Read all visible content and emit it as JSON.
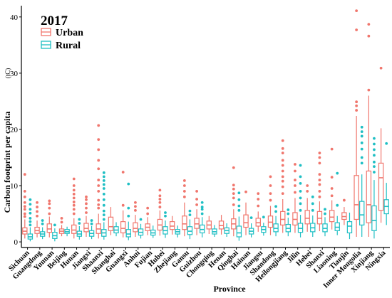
{
  "chart_data": {
    "type": "box",
    "title": "2017",
    "xlabel": "Province",
    "ylabel": "Carbon footprint per capita",
    "ylabel_unit": "(tC)",
    "ylim": [
      -1,
      42
    ],
    "yticks": [
      0,
      10,
      20,
      30,
      40
    ],
    "legend_position": "top-left",
    "series": [
      {
        "name": "Urban",
        "color": "#f0766d"
      },
      {
        "name": "Rural",
        "color": "#1fbfc4"
      }
    ],
    "categories": [
      "Sichuan",
      "Guangdong",
      "Yunnan",
      "Beijing",
      "Hunan",
      "Jiangxi",
      "Shaanxi",
      "Shanghai",
      "Guangxi",
      "Anhui",
      "Fujian",
      "Hubei",
      "Zhejiang",
      "Gansu",
      "Guizhou",
      "Chongqing",
      "Henan",
      "Qinghai",
      "Hainan",
      "Jiangsu",
      "Shandong",
      "Heilongjiang",
      "Jilin",
      "Hebei",
      "Shanxi",
      "Liaoning",
      "Tianjin",
      "Inner Mongolia",
      "Xinjiang",
      "Ningxia"
    ],
    "boxes": [
      {
        "urban": {
          "q1": 1.4,
          "median": 1.9,
          "q3": 2.5,
          "whisker_low": 0.6,
          "whisker_high": 4.0,
          "outliers": [
            4.5,
            5.0,
            5.8,
            6.3,
            7.0,
            8.0,
            9.0,
            12.0
          ]
        },
        "rural": {
          "q1": 0.5,
          "median": 0.9,
          "q3": 1.4,
          "whisker_low": 0.1,
          "whisker_high": 2.6,
          "outliers": [
            3.0,
            3.6,
            4.2,
            5.1,
            5.8,
            6.7,
            7.5
          ]
        }
      },
      {
        "urban": {
          "q1": 1.5,
          "median": 2.0,
          "q3": 2.6,
          "whisker_low": 0.8,
          "whisker_high": 3.8,
          "outliers": [
            4.6,
            5.4,
            6.2,
            7.0
          ]
        },
        "rural": {
          "q1": 1.0,
          "median": 1.4,
          "q3": 1.8,
          "whisker_low": 0.5,
          "whisker_high": 2.6,
          "outliers": [
            3.2,
            3.8
          ]
        }
      },
      {
        "urban": {
          "q1": 1.7,
          "median": 2.3,
          "q3": 3.2,
          "whisker_low": 0.8,
          "whisker_high": 4.5,
          "outliers": [
            5.0,
            6.0,
            6.8,
            7.3
          ]
        },
        "rural": {
          "q1": 0.6,
          "median": 1.1,
          "q3": 1.7,
          "whisker_low": 0.1,
          "whisker_high": 2.4,
          "outliers": [
            3.0
          ]
        }
      },
      {
        "urban": {
          "q1": 1.5,
          "median": 1.9,
          "q3": 2.3,
          "whisker_low": 1.0,
          "whisker_high": 3.0,
          "outliers": [
            3.5,
            4.2
          ]
        },
        "rural": {
          "q1": 1.5,
          "median": 1.8,
          "q3": 2.2,
          "whisker_low": 1.0,
          "whisker_high": 2.7,
          "outliers": []
        }
      },
      {
        "urban": {
          "q1": 1.5,
          "median": 2.1,
          "q3": 3.0,
          "whisker_low": 0.6,
          "whisker_high": 4.2,
          "outliers": [
            5.0,
            5.8,
            6.5,
            7.1,
            7.8,
            8.5,
            9.2,
            10.0,
            11.2
          ]
        },
        "rural": {
          "q1": 1.0,
          "median": 1.4,
          "q3": 1.9,
          "whisker_low": 0.4,
          "whisker_high": 2.8,
          "outliers": [
            3.3,
            4.0
          ]
        }
      },
      {
        "urban": {
          "q1": 1.8,
          "median": 2.4,
          "q3": 3.3,
          "whisker_low": 0.9,
          "whisker_high": 4.6,
          "outliers": [
            5.2,
            6.0,
            6.8,
            7.5,
            8.0
          ]
        },
        "rural": {
          "q1": 1.0,
          "median": 1.5,
          "q3": 2.0,
          "whisker_low": 0.5,
          "whisker_high": 2.8,
          "outliers": [
            3.2,
            3.8
          ]
        }
      },
      {
        "urban": {
          "q1": 1.5,
          "median": 2.3,
          "q3": 3.2,
          "whisker_low": 0.6,
          "whisker_high": 5.0,
          "outliers": [
            6.0,
            6.6,
            7.4,
            9.0,
            10.0,
            11.0,
            13.0,
            14.5,
            16.4,
            18.2,
            20.7
          ]
        },
        "rural": {
          "q1": 1.0,
          "median": 1.6,
          "q3": 2.2,
          "whisker_low": 0.4,
          "whisker_high": 3.5,
          "outliers": [
            4.0,
            4.8,
            5.5,
            6.5,
            7.5,
            8.5,
            9.5,
            10.2,
            10.9,
            11.6,
            12.3
          ]
        }
      },
      {
        "urban": {
          "q1": 2.0,
          "median": 2.7,
          "q3": 4.4,
          "whisker_low": 1.2,
          "whisker_high": 6.2,
          "outliers": []
        },
        "rural": {
          "q1": 1.6,
          "median": 2.1,
          "q3": 2.7,
          "whisker_low": 1.0,
          "whisker_high": 3.5,
          "outliers": []
        }
      },
      {
        "urban": {
          "q1": 1.6,
          "median": 2.4,
          "q3": 3.6,
          "whisker_low": 0.8,
          "whisker_high": 5.6,
          "outliers": [
            6.5,
            12.4
          ]
        },
        "rural": {
          "q1": 0.9,
          "median": 1.4,
          "q3": 2.2,
          "whisker_low": 0.3,
          "whisker_high": 3.6,
          "outliers": [
            4.6,
            6.0,
            10.3
          ]
        }
      },
      {
        "urban": {
          "q1": 1.8,
          "median": 2.4,
          "q3": 3.4,
          "whisker_low": 0.9,
          "whisker_high": 4.8,
          "outliers": [
            5.6,
            6.3,
            7.0
          ]
        },
        "rural": {
          "q1": 1.2,
          "median": 1.7,
          "q3": 2.3,
          "whisker_low": 0.6,
          "whisker_high": 3.2,
          "outliers": [
            4.0
          ]
        }
      },
      {
        "urban": {
          "q1": 2.0,
          "median": 2.6,
          "q3": 3.2,
          "whisker_low": 1.2,
          "whisker_high": 4.4,
          "outliers": [
            5.0,
            6.0
          ]
        },
        "rural": {
          "q1": 1.2,
          "median": 1.6,
          "q3": 2.1,
          "whisker_low": 0.7,
          "whisker_high": 2.9,
          "outliers": []
        }
      },
      {
        "urban": {
          "q1": 2.1,
          "median": 3.0,
          "q3": 4.0,
          "whisker_low": 1.1,
          "whisker_high": 5.6,
          "outliers": [
            6.2,
            7.0,
            7.6,
            8.2,
            9.2
          ]
        },
        "rural": {
          "q1": 1.4,
          "median": 2.0,
          "q3": 2.7,
          "whisker_low": 0.7,
          "whisker_high": 3.8,
          "outliers": [
            4.6,
            5.2
          ]
        }
      },
      {
        "urban": {
          "q1": 2.2,
          "median": 2.8,
          "q3": 3.6,
          "whisker_low": 1.3,
          "whisker_high": 4.6,
          "outliers": []
        },
        "rural": {
          "q1": 1.4,
          "median": 1.8,
          "q3": 2.2,
          "whisker_low": 0.8,
          "whisker_high": 2.9,
          "outliers": []
        }
      },
      {
        "urban": {
          "q1": 2.2,
          "median": 3.2,
          "q3": 4.6,
          "whisker_low": 1.0,
          "whisker_high": 7.0,
          "outliers": [
            8.0,
            9.0,
            10.0,
            10.9
          ]
        },
        "rural": {
          "q1": 1.3,
          "median": 1.9,
          "q3": 2.7,
          "whisker_low": 0.5,
          "whisker_high": 4.0,
          "outliers": [
            4.8,
            5.5
          ]
        }
      },
      {
        "urban": {
          "q1": 2.4,
          "median": 3.2,
          "q3": 4.2,
          "whisker_low": 1.2,
          "whisker_high": 5.8,
          "outliers": [
            6.6,
            7.6,
            9.0
          ]
        },
        "rural": {
          "q1": 1.6,
          "median": 2.2,
          "q3": 3.0,
          "whisker_low": 0.8,
          "whisker_high": 4.4,
          "outliers": [
            5.0,
            5.8,
            6.2,
            7.0
          ]
        }
      },
      {
        "urban": {
          "q1": 2.3,
          "median": 3.0,
          "q3": 3.7,
          "whisker_low": 1.4,
          "whisker_high": 4.6,
          "outliers": []
        },
        "rural": {
          "q1": 1.4,
          "median": 1.8,
          "q3": 2.3,
          "whisker_low": 0.9,
          "whisker_high": 3.0,
          "outliers": []
        }
      },
      {
        "urban": {
          "q1": 2.3,
          "median": 2.9,
          "q3": 3.7,
          "whisker_low": 1.3,
          "whisker_high": 4.8,
          "outliers": []
        },
        "rural": {
          "q1": 1.5,
          "median": 2.0,
          "q3": 2.5,
          "whisker_low": 0.9,
          "whisker_high": 3.3,
          "outliers": []
        }
      },
      {
        "urban": {
          "q1": 2.3,
          "median": 3.2,
          "q3": 4.1,
          "whisker_low": 1.0,
          "whisker_high": 5.8,
          "outliers": [
            6.6,
            7.8,
            8.6,
            9.4,
            10.1,
            13.2
          ]
        },
        "rural": {
          "q1": 0.9,
          "median": 1.6,
          "q3": 2.8,
          "whisker_low": 0.2,
          "whisker_high": 4.5,
          "outliers": [
            5.6,
            6.4,
            7.5,
            8.7
          ]
        }
      },
      {
        "urban": {
          "q1": 2.6,
          "median": 3.4,
          "q3": 4.8,
          "whisker_low": 1.2,
          "whisker_high": 7.0,
          "outliers": [
            8.9
          ]
        },
        "rural": {
          "q1": 1.4,
          "median": 1.9,
          "q3": 2.4,
          "whisker_low": 0.8,
          "whisker_high": 3.3,
          "outliers": [
            4.3
          ]
        }
      },
      {
        "urban": {
          "q1": 2.8,
          "median": 3.4,
          "q3": 4.2,
          "whisker_low": 1.8,
          "whisker_high": 5.4,
          "outliers": [
            6.4,
            7.6,
            8.6
          ]
        },
        "rural": {
          "q1": 1.7,
          "median": 2.2,
          "q3": 2.7,
          "whisker_low": 1.1,
          "whisker_high": 3.4,
          "outliers": [
            4.4
          ]
        }
      },
      {
        "urban": {
          "q1": 2.6,
          "median": 3.5,
          "q3": 4.6,
          "whisker_low": 1.2,
          "whisker_high": 6.4,
          "outliers": [
            7.4,
            8.6,
            10.0,
            11.6
          ]
        },
        "rural": {
          "q1": 1.8,
          "median": 2.4,
          "q3": 3.2,
          "whisker_low": 1.0,
          "whisker_high": 4.6,
          "outliers": [
            5.4,
            6.3
          ]
        }
      },
      {
        "urban": {
          "q1": 3.0,
          "median": 4.0,
          "q3": 5.4,
          "whisker_low": 1.6,
          "whisker_high": 7.6,
          "outliers": [
            8.6,
            9.8,
            10.8,
            11.6,
            12.6,
            13.6,
            14.5,
            15.8,
            16.6,
            18.0
          ]
        },
        "rural": {
          "q1": 1.8,
          "median": 2.4,
          "q3": 3.1,
          "whisker_low": 1.0,
          "whisker_high": 4.3,
          "outliers": [
            5.0,
            5.7
          ]
        }
      },
      {
        "urban": {
          "q1": 3.0,
          "median": 4.0,
          "q3": 5.2,
          "whisker_low": 1.6,
          "whisker_high": 7.8,
          "outliers": [
            8.8,
            10.0,
            11.0,
            12.6,
            13.8
          ]
        },
        "rural": {
          "q1": 1.7,
          "median": 2.4,
          "q3": 3.3,
          "whisker_low": 0.8,
          "whisker_high": 4.8,
          "outliers": [
            5.6,
            6.8,
            7.8,
            9.0,
            10.4,
            11.6,
            13.6
          ]
        }
      },
      {
        "urban": {
          "q1": 3.2,
          "median": 4.2,
          "q3": 5.6,
          "whisker_low": 1.8,
          "whisker_high": 7.8,
          "outliers": [
            9.0,
            10.0
          ]
        },
        "rural": {
          "q1": 1.8,
          "median": 2.5,
          "q3": 3.3,
          "whisker_low": 0.9,
          "whisker_high": 4.7,
          "outliers": [
            5.6,
            6.8,
            8.0
          ]
        }
      },
      {
        "urban": {
          "q1": 3.2,
          "median": 4.2,
          "q3": 5.4,
          "whisker_low": 1.9,
          "whisker_high": 7.2,
          "outliers": [
            8.0,
            9.0,
            10.2,
            11.0,
            12.0,
            14.0,
            15.0,
            15.8
          ]
        },
        "rural": {
          "q1": 1.8,
          "median": 2.4,
          "q3": 3.2,
          "whisker_low": 1.0,
          "whisker_high": 4.4,
          "outliers": [
            5.0,
            5.8
          ]
        }
      },
      {
        "urban": {
          "q1": 3.6,
          "median": 4.4,
          "q3": 5.6,
          "whisker_low": 2.2,
          "whisker_high": 7.4,
          "outliers": [
            8.2,
            9.5,
            11.5,
            16.5
          ]
        },
        "rural": {
          "q1": 2.0,
          "median": 2.6,
          "q3": 3.4,
          "whisker_low": 1.2,
          "whisker_high": 4.6,
          "outliers": [
            6.5,
            12.2
          ]
        }
      },
      {
        "urban": {
          "q1": 4.0,
          "median": 4.5,
          "q3": 5.2,
          "whisker_low": 3.0,
          "whisker_high": 6.2,
          "outliers": [
            7.4
          ]
        },
        "rural": {
          "q1": 1.6,
          "median": 2.8,
          "q3": 3.6,
          "whisker_low": 0.5,
          "whisker_high": 5.2,
          "outliers": []
        }
      },
      {
        "urban": {
          "q1": 4.0,
          "median": 6.6,
          "q3": 11.8,
          "whisker_low": 0.9,
          "whisker_high": 22.4,
          "outliers": [
            23.4,
            24.2,
            24.9,
            37.7,
            41.1
          ]
        },
        "rural": {
          "q1": 3.0,
          "median": 4.8,
          "q3": 7.2,
          "whisker_low": 0.9,
          "whisker_high": 12.0,
          "outliers": [
            14.0,
            15.0,
            16.5,
            17.6,
            18.8,
            19.6,
            20.4
          ]
        }
      },
      {
        "urban": {
          "q1": 3.4,
          "median": 6.6,
          "q3": 12.6,
          "whisker_low": 0.9,
          "whisker_high": 26.0,
          "outliers": [
            27.0,
            36.6,
            38.7
          ]
        },
        "rural": {
          "q1": 2.0,
          "median": 3.8,
          "q3": 6.4,
          "whisker_low": 0.6,
          "whisker_high": 11.0,
          "outliers": [
            12.4,
            13.4,
            14.2,
            15.4,
            16.4,
            17.4,
            18.4
          ]
        }
      },
      {
        "urban": {
          "q1": 5.6,
          "median": 11.4,
          "q3": 14.0,
          "whisker_low": 3.4,
          "whisker_high": 20.2,
          "outliers": [
            30.9
          ]
        },
        "rural": {
          "q1": 5.0,
          "median": 6.3,
          "q3": 7.5,
          "whisker_low": 3.0,
          "whisker_high": 10.5,
          "outliers": [
            17.5
          ]
        }
      }
    ]
  }
}
